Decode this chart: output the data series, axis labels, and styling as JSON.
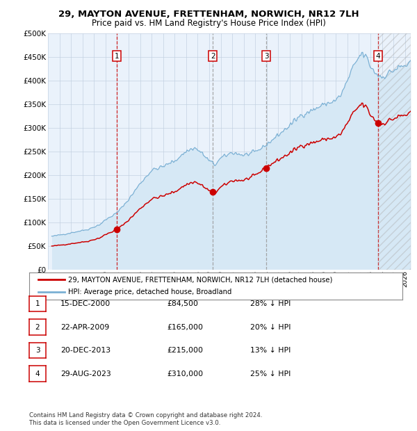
{
  "title": "29, MAYTON AVENUE, FRETTENHAM, NORWICH, NR12 7LH",
  "subtitle": "Price paid vs. HM Land Registry's House Price Index (HPI)",
  "ylabel_ticks": [
    "£0",
    "£50K",
    "£100K",
    "£150K",
    "£200K",
    "£250K",
    "£300K",
    "£350K",
    "£400K",
    "£450K",
    "£500K"
  ],
  "ytick_values": [
    0,
    50000,
    100000,
    150000,
    200000,
    250000,
    300000,
    350000,
    400000,
    450000,
    500000
  ],
  "ylim": [
    0,
    500000
  ],
  "xlim_start": 1995.33,
  "xlim_end": 2026.5,
  "sale_dates": [
    2000.958,
    2009.31,
    2013.97,
    2023.66
  ],
  "sale_prices": [
    84500,
    165000,
    215000,
    310000
  ],
  "sale_labels": [
    "1",
    "2",
    "3",
    "4"
  ],
  "sale_vline_colors": [
    "#cc0000",
    "#999999",
    "#999999",
    "#cc0000"
  ],
  "sale_vline_styles": [
    "--",
    "--",
    "--",
    "--"
  ],
  "legend_line1": "29, MAYTON AVENUE, FRETTENHAM, NORWICH, NR12 7LH (detached house)",
  "legend_line2": "HPI: Average price, detached house, Broadland",
  "table_data": [
    [
      "1",
      "15-DEC-2000",
      "£84,500",
      "28% ↓ HPI"
    ],
    [
      "2",
      "22-APR-2009",
      "£165,000",
      "20% ↓ HPI"
    ],
    [
      "3",
      "20-DEC-2013",
      "£215,000",
      "13% ↓ HPI"
    ],
    [
      "4",
      "29-AUG-2023",
      "£310,000",
      "25% ↓ HPI"
    ]
  ],
  "footnote": "Contains HM Land Registry data © Crown copyright and database right 2024.\nThis data is licensed under the Open Government Licence v3.0.",
  "sale_color": "#cc0000",
  "hpi_color": "#7ab0d4",
  "hpi_fill_color": "#d6e8f5",
  "background_color": "#eaf2fb",
  "grid_color": "#c0cfe0"
}
